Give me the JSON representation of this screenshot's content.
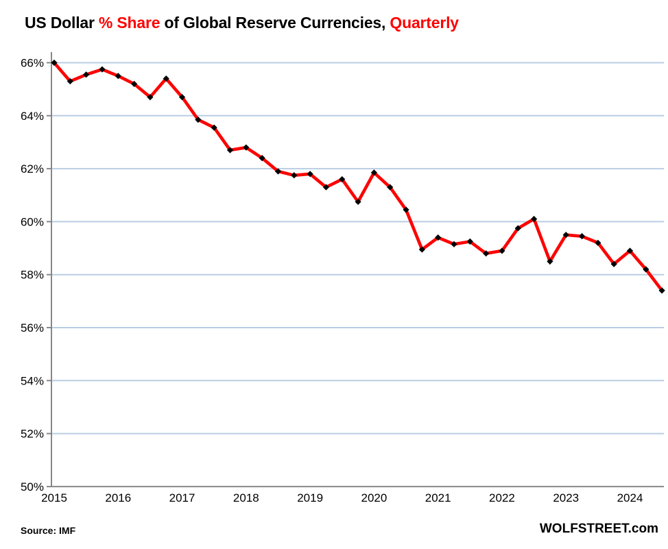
{
  "title": {
    "part1": "US Dollar ",
    "part2": "% Share",
    "part3": " of Global Reserve Currencies, ",
    "part4": "Quarterly"
  },
  "footer": {
    "source": "Source: IMF",
    "brand": "WOLFSTREET.com"
  },
  "colors": {
    "line": "#fe0000",
    "marker": "#000000",
    "gridline": "#b9cde4",
    "axis": "#868686",
    "title_accent": "#ff0000",
    "text": "#000000",
    "background": "#ffffff"
  },
  "chart_data": {
    "type": "line",
    "title": "US Dollar % Share of Global Reserve Currencies, Quarterly",
    "source": "IMF",
    "frequency": "quarterly",
    "legend": "none",
    "grid": "horizontal",
    "ylim": [
      50,
      66
    ],
    "y_tick_step": 2,
    "y_tick_labels": [
      "66%",
      "64%",
      "62%",
      "60%",
      "58%",
      "56%",
      "54%",
      "52%",
      "50%"
    ],
    "x_tick_labels": [
      "2015",
      "2016",
      "2017",
      "2018",
      "2019",
      "2020",
      "2021",
      "2022",
      "2023",
      "2024"
    ],
    "x": [
      "2015Q1",
      "2015Q2",
      "2015Q3",
      "2015Q4",
      "2016Q1",
      "2016Q2",
      "2016Q3",
      "2016Q4",
      "2017Q1",
      "2017Q2",
      "2017Q3",
      "2017Q4",
      "2018Q1",
      "2018Q2",
      "2018Q3",
      "2018Q4",
      "2019Q1",
      "2019Q2",
      "2019Q3",
      "2019Q4",
      "2020Q1",
      "2020Q2",
      "2020Q3",
      "2020Q4",
      "2021Q1",
      "2021Q2",
      "2021Q3",
      "2021Q4",
      "2022Q1",
      "2022Q2",
      "2022Q3",
      "2022Q4",
      "2023Q1",
      "2023Q2",
      "2023Q3",
      "2023Q4",
      "2024Q1",
      "2024Q2",
      "2024Q3"
    ],
    "values": [
      66.0,
      65.3,
      65.55,
      65.75,
      65.5,
      65.2,
      64.7,
      65.4,
      64.7,
      63.85,
      63.55,
      62.7,
      62.8,
      62.4,
      61.9,
      61.75,
      61.8,
      61.3,
      61.6,
      60.75,
      61.85,
      61.3,
      60.45,
      58.95,
      59.4,
      59.15,
      59.25,
      58.8,
      58.9,
      59.75,
      60.1,
      58.5,
      59.5,
      59.45,
      59.2,
      58.4,
      58.9,
      58.2,
      57.4
    ]
  }
}
